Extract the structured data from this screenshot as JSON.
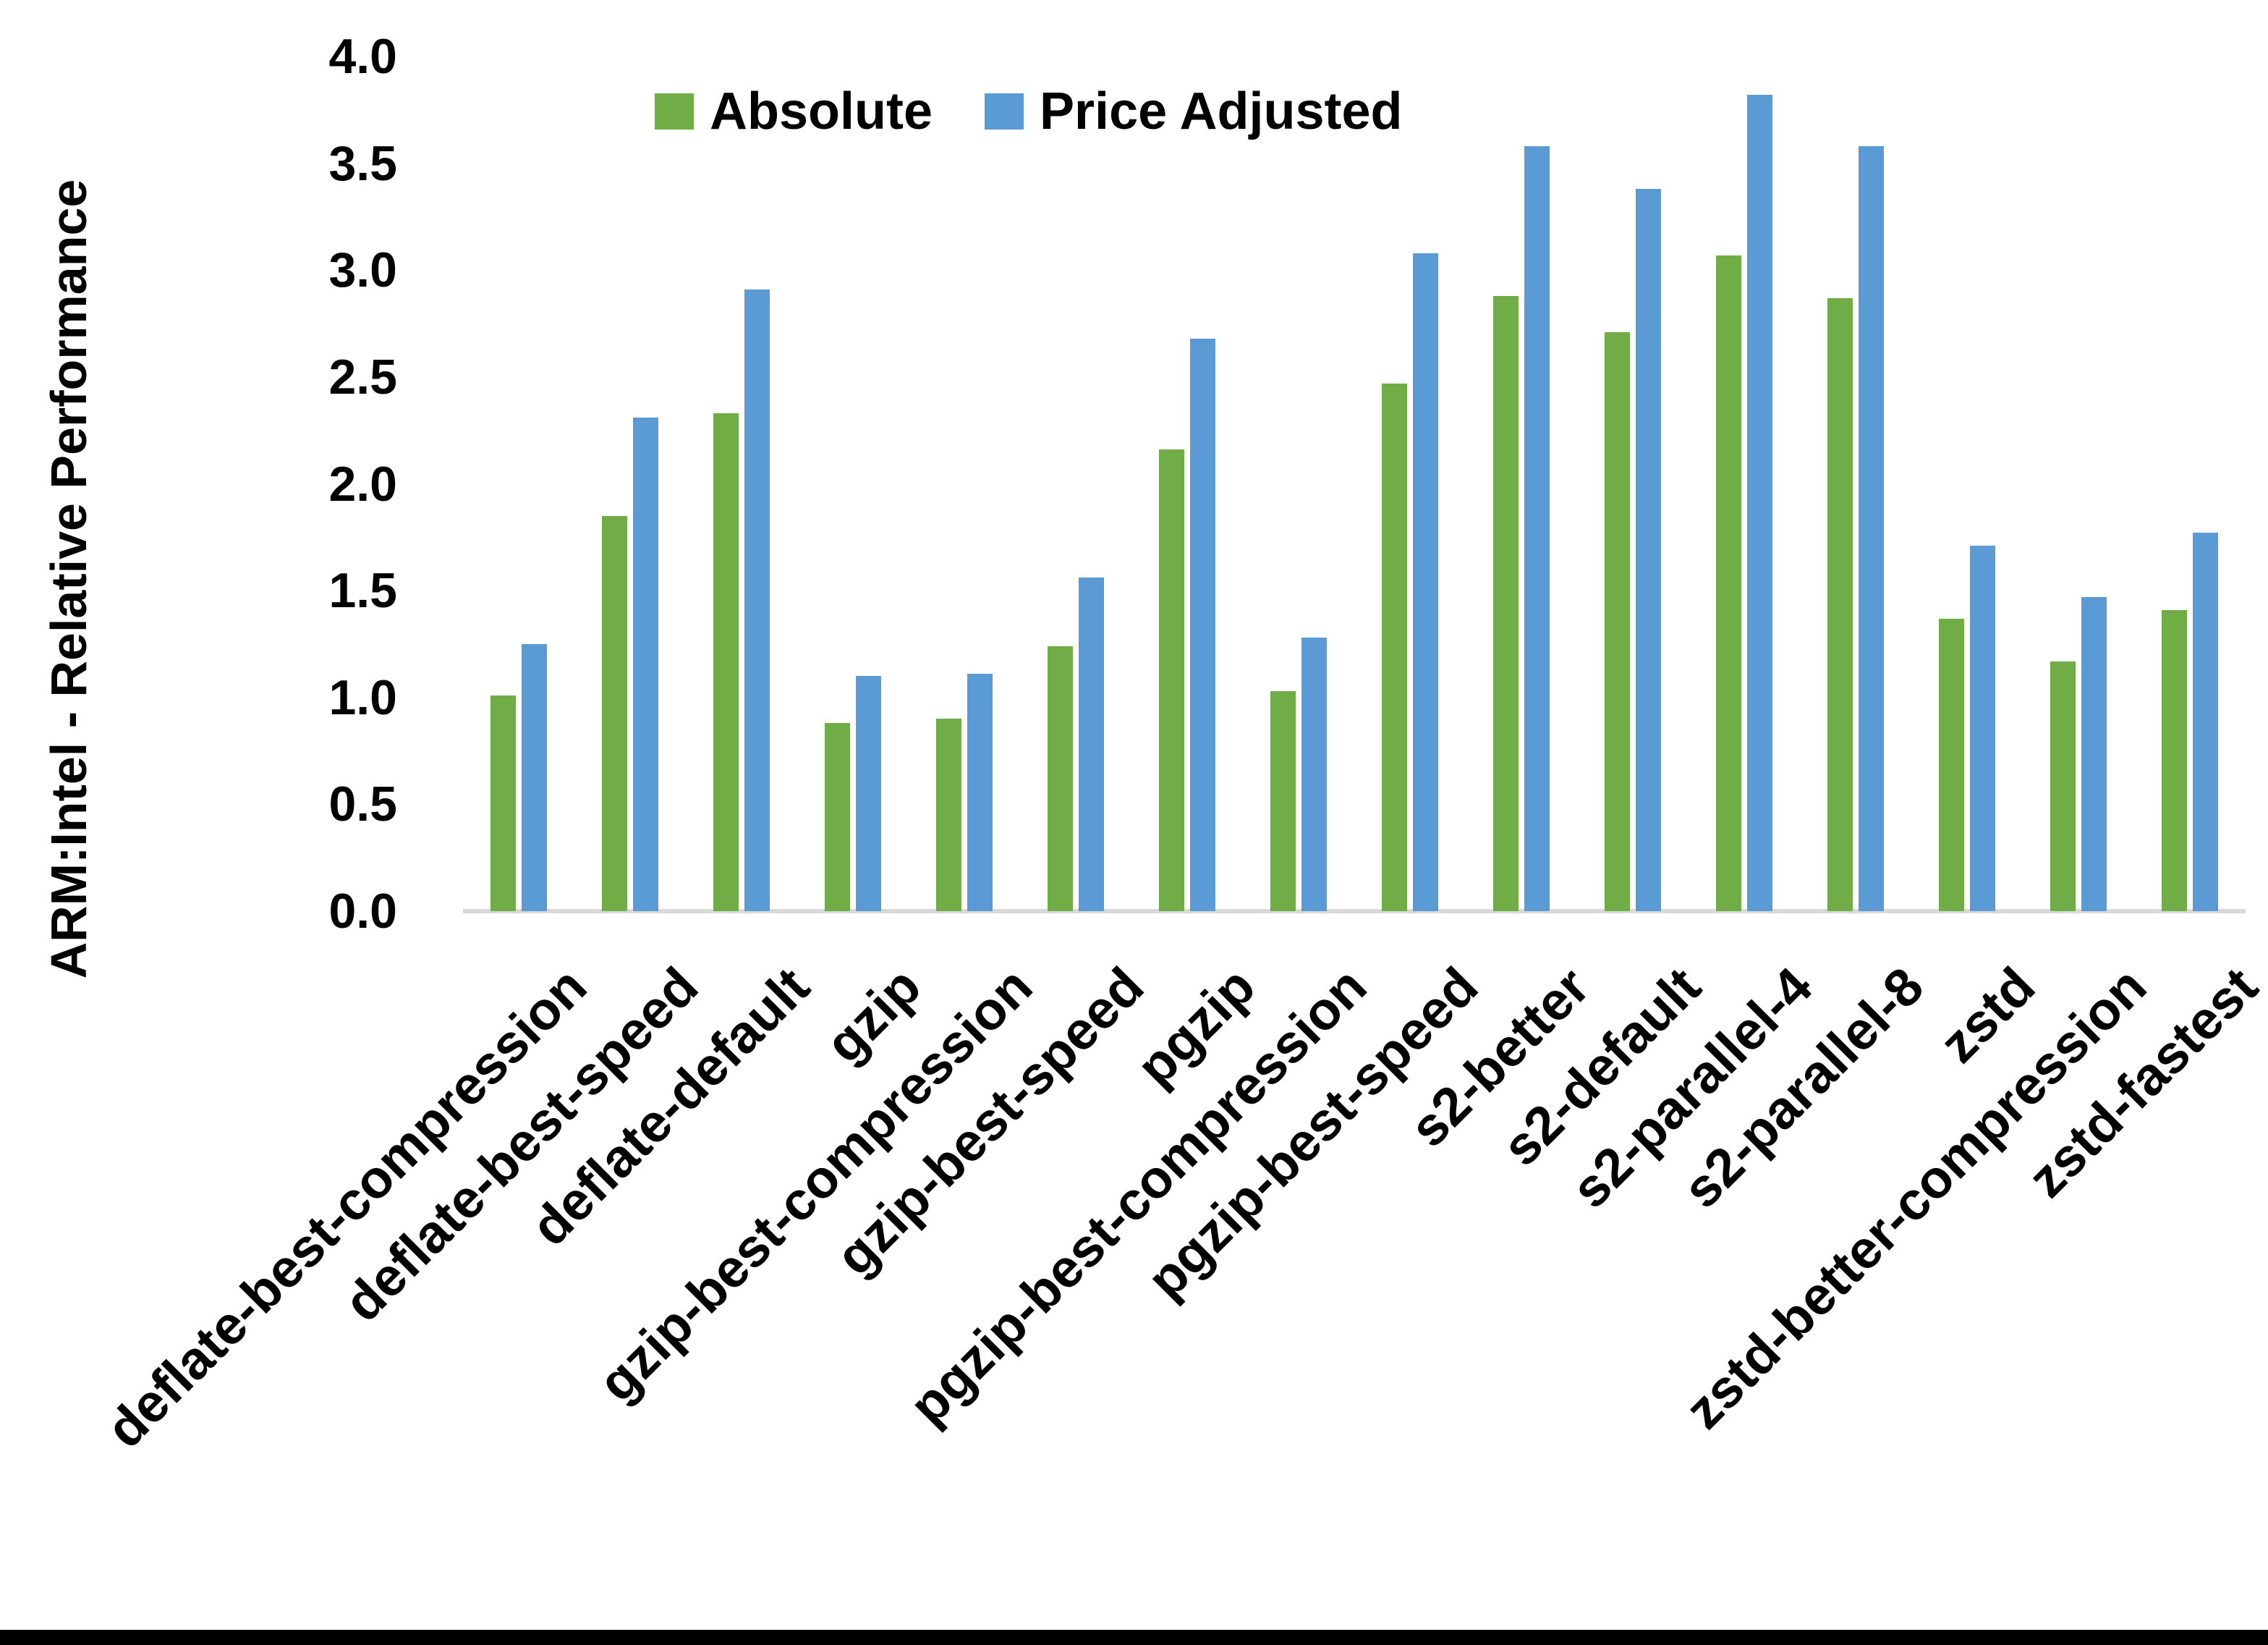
{
  "chart_data": {
    "type": "bar",
    "title": "",
    "y_axis_title": "ARM:Intel - Relative Performance",
    "xlabel": "",
    "ylabel": "ARM:Intel - Relative Performance",
    "ylim": [
      0.0,
      4.0
    ],
    "y_ticks": [
      "0.0",
      "0.5",
      "1.0",
      "1.5",
      "2.0",
      "2.5",
      "3.0",
      "3.5",
      "4.0"
    ],
    "grid": false,
    "legend_position": "top-center",
    "background_color": "#FFFFFF",
    "axis_line_color": "#D9D9D9",
    "text_color": "#000000",
    "categories": [
      "deflate-best-compression",
      "deflate-best-speed",
      "deflate-default",
      "gzip",
      "gzip-best-compression",
      "gzip-best-speed",
      "pgzip",
      "pgzip-best-compression",
      "pgzip-best-speed",
      "s2-better",
      "s2-default",
      "s2-parallel-4",
      "s2-parallel-8",
      "zstd",
      "zstd-better-compression",
      "zstd-fastest"
    ],
    "series": [
      {
        "name": "Absolute",
        "color": "#70AD47",
        "values": [
          1.01,
          1.85,
          2.33,
          0.88,
          0.9,
          1.24,
          2.16,
          1.03,
          2.47,
          2.88,
          2.71,
          3.07,
          2.87,
          1.37,
          1.17,
          1.41
        ]
      },
      {
        "name": "Price Adjusted",
        "color": "#5B9BD5",
        "values": [
          1.25,
          2.31,
          2.91,
          1.1,
          1.11,
          1.56,
          2.68,
          1.28,
          3.08,
          3.58,
          3.38,
          3.82,
          3.58,
          1.71,
          1.47,
          1.77
        ]
      }
    ]
  },
  "page": {
    "bottom_border_color": "#000000"
  }
}
